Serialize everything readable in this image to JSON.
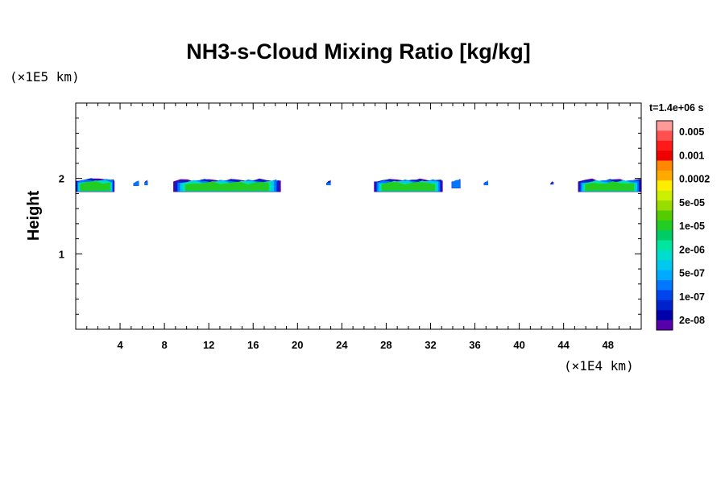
{
  "chart_data": {
    "type": "heatmap",
    "title": "NH3-s-Cloud Mixing Ratio [kg/kg]",
    "ylabel": "Height",
    "x_unit": "(×1E4 km)",
    "y_unit": "(×1E5 km)",
    "xlim": [
      0,
      51
    ],
    "ylim": [
      0,
      3
    ],
    "x_ticks": [
      "4",
      "8",
      "12",
      "16",
      "20",
      "24",
      "28",
      "32",
      "36",
      "40",
      "44",
      "48"
    ],
    "y_ticks": [
      "1",
      "2"
    ],
    "time_label": "t=1.4e+06 s",
    "colorbar": {
      "labels": [
        "0.005",
        "0.001",
        "0.0002",
        "5e-05",
        "1e-05",
        "2e-06",
        "5e-07",
        "1e-07",
        "2e-08"
      ],
      "colors": [
        "#ff9a9a",
        "#ff5050",
        "#ff1a1a",
        "#ee0000",
        "#ff8800",
        "#ffaa00",
        "#ffee00",
        "#ccee00",
        "#99dd00",
        "#55cc00",
        "#22cc22",
        "#00cc66",
        "#00e6a0",
        "#00ddcc",
        "#00c8ee",
        "#00aaff",
        "#0077ff",
        "#0044ee",
        "#0022cc",
        "#0000aa",
        "#5500aa"
      ]
    },
    "cloud_segments": [
      {
        "x0": 0.0,
        "x1": 3.5,
        "top": 1.99,
        "bottom": 1.82
      },
      {
        "x0": 5.2,
        "x1": 5.7,
        "top": 1.96,
        "bottom": 1.9
      },
      {
        "x0": 6.2,
        "x1": 6.5,
        "top": 1.97,
        "bottom": 1.91
      },
      {
        "x0": 8.8,
        "x1": 18.5,
        "top": 1.98,
        "bottom": 1.82
      },
      {
        "x0": 22.6,
        "x1": 23.0,
        "top": 1.96,
        "bottom": 1.91
      },
      {
        "x0": 26.9,
        "x1": 33.1,
        "top": 1.98,
        "bottom": 1.82
      },
      {
        "x0": 33.9,
        "x1": 34.7,
        "top": 1.98,
        "bottom": 1.87
      },
      {
        "x0": 36.8,
        "x1": 37.2,
        "top": 1.96,
        "bottom": 1.91
      },
      {
        "x0": 42.8,
        "x1": 43.1,
        "top": 1.95,
        "bottom": 1.92
      },
      {
        "x0": 45.3,
        "x1": 51.0,
        "top": 1.98,
        "bottom": 1.82
      }
    ]
  }
}
